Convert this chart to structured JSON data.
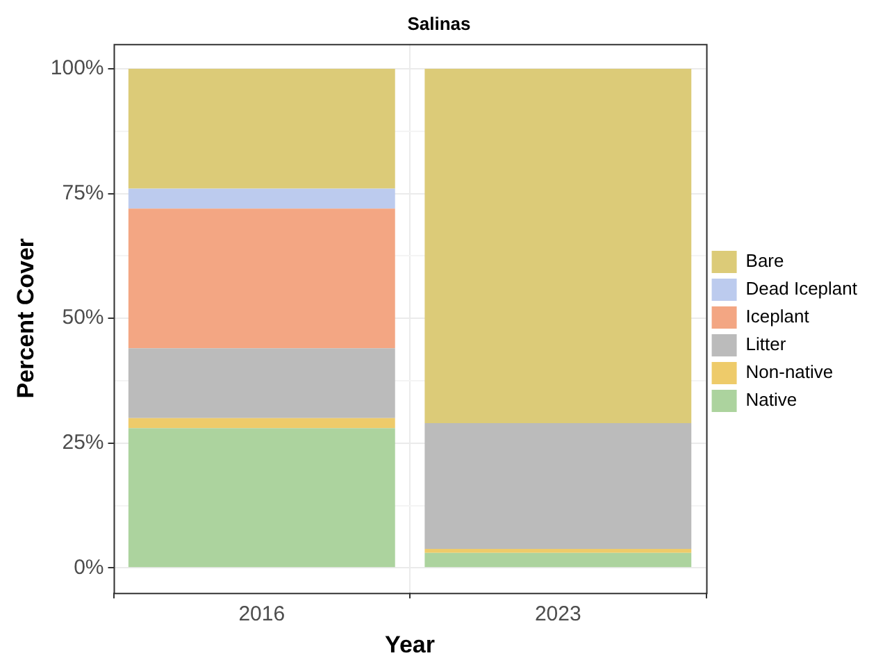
{
  "chart_data": {
    "type": "bar",
    "title": "Salinas",
    "xlabel": "Year",
    "ylabel": "Percent Cover",
    "categories": [
      "2016",
      "2023"
    ],
    "stacked": true,
    "legend": "right",
    "grid": true,
    "ylim": [
      -5,
      105
    ],
    "yticks": [
      {
        "value": 0,
        "label": "0%"
      },
      {
        "value": 12.5,
        "label": null
      },
      {
        "value": 25,
        "label": "25%"
      },
      {
        "value": 37.5,
        "label": null
      },
      {
        "value": 50,
        "label": "50%"
      },
      {
        "value": 62.5,
        "label": null
      },
      {
        "value": 75,
        "label": "75%"
      },
      {
        "value": 87.5,
        "label": null
      },
      {
        "value": 100,
        "label": "100%"
      }
    ],
    "series": [
      {
        "name": "Native",
        "color": "#acd39e",
        "values": [
          28,
          3
        ]
      },
      {
        "name": "Non-native",
        "color": "#eecb6a",
        "values": [
          2,
          0.8
        ]
      },
      {
        "name": "Litter",
        "color": "#bbbbbb",
        "values": [
          14,
          25.2
        ]
      },
      {
        "name": "Iceplant",
        "color": "#f3a683",
        "values": [
          28,
          0
        ]
      },
      {
        "name": "Dead Iceplant",
        "color": "#bccbee",
        "values": [
          4,
          0
        ]
      },
      {
        "name": "Bare",
        "color": "#dccb78",
        "values": [
          24,
          71
        ]
      }
    ]
  }
}
